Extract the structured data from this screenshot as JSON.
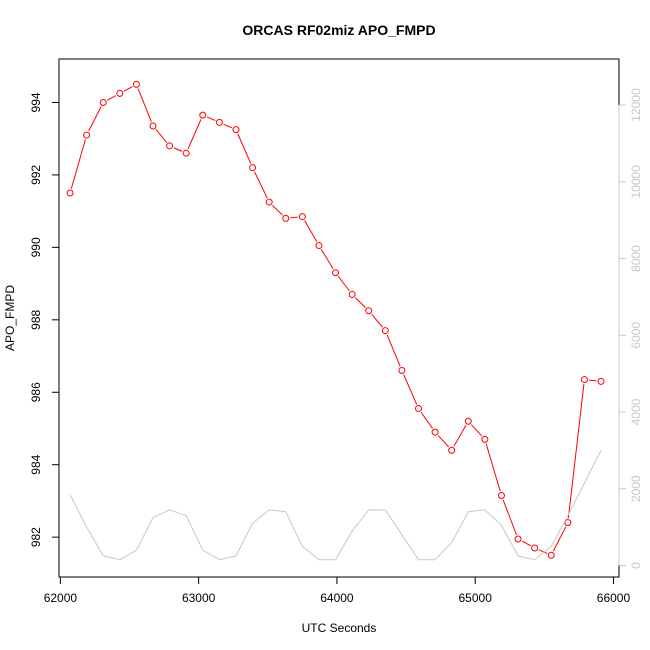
{
  "chart_data": {
    "type": "line",
    "title": "ORCAS RF02miz APO_FMPD",
    "xlabel": "UTC Seconds",
    "ylabel": "APO_FMPD",
    "y2label": "",
    "xlim": [
      61990,
      66040
    ],
    "ylim": [
      980.9,
      995.2
    ],
    "y2lim": [
      -300,
      13200
    ],
    "x_ticks": [
      62000,
      63000,
      64000,
      65000,
      66000
    ],
    "y_ticks": [
      982,
      984,
      986,
      988,
      990,
      992,
      994
    ],
    "y2_ticks": [
      0,
      2000,
      4000,
      6000,
      8000,
      10000,
      12000
    ],
    "grid": false,
    "colors": {
      "primary": "#ff0000",
      "secondary": "#c8c8c8"
    },
    "series": [
      {
        "axis": "left",
        "style": "line+circle",
        "x": [
          62070,
          62190,
          62310,
          62430,
          62550,
          62670,
          62790,
          62910,
          63030,
          63150,
          63270,
          63390,
          63510,
          63630,
          63750,
          63870,
          63990,
          64110,
          64230,
          64350,
          64470,
          64590,
          64710,
          64830,
          64950,
          65070,
          65190,
          65310,
          65430,
          65550,
          65670,
          65790,
          65910
        ],
        "y": [
          991.5,
          993.1,
          994.0,
          994.25,
          994.5,
          993.35,
          992.8,
          992.6,
          993.65,
          993.45,
          993.25,
          992.2,
          991.25,
          990.8,
          990.85,
          990.05,
          989.3,
          988.7,
          988.25,
          987.7,
          986.6,
          985.55,
          984.9,
          984.4,
          985.2,
          984.7,
          983.15,
          981.95,
          981.7,
          981.5,
          982.4,
          986.35,
          986.3
        ]
      },
      {
        "axis": "right",
        "style": "line",
        "x": [
          62070,
          62190,
          62310,
          62430,
          62550,
          62670,
          62790,
          62910,
          63030,
          63150,
          63270,
          63390,
          63510,
          63630,
          63750,
          63870,
          63990,
          64110,
          64230,
          64350,
          64470,
          64590,
          64710,
          64830,
          64950,
          65070,
          65190,
          65310,
          65430,
          65550,
          65670,
          65790,
          65910
        ],
        "y": [
          1850,
          1000,
          250,
          150,
          400,
          1250,
          1450,
          1300,
          400,
          150,
          250,
          1100,
          1450,
          1400,
          500,
          150,
          150,
          900,
          1450,
          1450,
          800,
          150,
          150,
          600,
          1400,
          1450,
          1050,
          250,
          150,
          500,
          1300,
          2150,
          3000
        ]
      }
    ]
  }
}
